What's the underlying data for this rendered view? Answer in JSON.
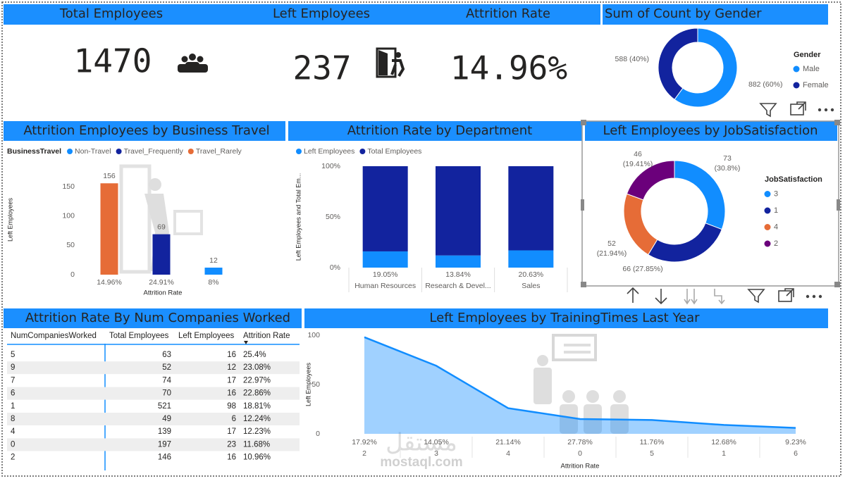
{
  "cards": [
    {
      "title": "Total Employees",
      "value": 1470
    },
    {
      "title": "Left Employees",
      "value": 237
    },
    {
      "title": "Attrition Rate",
      "value": "14.96%"
    }
  ],
  "table": {
    "title": "Attrition Rate By Num Companies Worked",
    "columns": [
      "NumCompaniesWorked",
      "Total Employees",
      "Left Employees",
      "Attrition Rate"
    ],
    "rows": [
      [
        5,
        63,
        16,
        "25.4%"
      ],
      [
        9,
        52,
        12,
        "23.08%"
      ],
      [
        7,
        74,
        17,
        "22.97%"
      ],
      [
        6,
        70,
        16,
        "22.86%"
      ],
      [
        1,
        521,
        98,
        "18.81%"
      ],
      [
        8,
        49,
        6,
        "12.24%"
      ],
      [
        4,
        139,
        17,
        "12.23%"
      ],
      [
        0,
        197,
        23,
        "11.68%"
      ],
      [
        2,
        146,
        16,
        "10.96%"
      ]
    ]
  },
  "watermark": [
    "مستقل",
    "mostaql.com"
  ],
  "chart_data": [
    {
      "type": "donut",
      "title": "Sum of Count by Gender",
      "legend_title": "Gender",
      "categories": [
        "Male",
        "Female"
      ],
      "values": [
        882,
        588
      ],
      "value_labels": [
        "882 (60%)",
        "588 (40%)"
      ],
      "colors": [
        "#118DFF",
        "#12239E"
      ]
    },
    {
      "type": "bar",
      "title": "Attrition Employees by Business Travel",
      "legend_title": "BusinessTravel",
      "x_label": "Attrition Rate",
      "y_label": "Left Employees",
      "categories": [
        "14.96%",
        "24.91%",
        "8%"
      ],
      "series": [
        {
          "name": "Non-Travel",
          "color": "#118DFF",
          "values": [
            null,
            null,
            12
          ]
        },
        {
          "name": "Travel_Frequently",
          "color": "#12239E",
          "values": [
            null,
            69,
            null
          ]
        },
        {
          "name": "Travel_Rarely",
          "color": "#E66C37",
          "values": [
            156,
            null,
            null
          ]
        }
      ],
      "ylim": [
        0,
        190
      ],
      "yticks": [
        0,
        50,
        100,
        150
      ]
    },
    {
      "type": "stacked100",
      "title": "Attrition Rate by Department",
      "y_label": "Left Employees and Total Em...",
      "categories": [
        "Human Resources",
        "Research & Devel...",
        "Sales"
      ],
      "category_rates": [
        "19.05%",
        "13.84%",
        "20.63%"
      ],
      "series": [
        {
          "name": "Left Employees",
          "color": "#118DFF",
          "values": [
            16,
            12,
            17
          ]
        },
        {
          "name": "Total Employees",
          "color": "#12239E",
          "values": [
            84,
            88,
            83
          ]
        }
      ],
      "ylim": [
        0,
        100
      ],
      "yticks": [
        {
          "value": 0,
          "label": "0%"
        },
        {
          "value": 50,
          "label": "50%"
        },
        {
          "value": 100,
          "label": "100%"
        }
      ]
    },
    {
      "type": "donut",
      "title": "Left Employees by JobSatisfaction",
      "legend_title": "JobSatisfaction",
      "categories": [
        "3",
        "1",
        "4",
        "2"
      ],
      "values": [
        73,
        66,
        52,
        46
      ],
      "value_labels": [
        "73 (30.8%)",
        "66 (27.85%)",
        "52 (21.94%)",
        "46 (19.41%)"
      ],
      "colors": [
        "#118DFF",
        "#12239E",
        "#E66C37",
        "#6B007B"
      ]
    },
    {
      "type": "area",
      "title": "Left Employees by TrainingTimes Last Year",
      "x_label": "Attrition Rate",
      "y_label": "Left Employees",
      "categories": [
        "2",
        "3",
        "4",
        "0",
        "5",
        "1",
        "6"
      ],
      "category_rates": [
        "17.92%",
        "14.05%",
        "21.14%",
        "27.78%",
        "11.76%",
        "12.68%",
        "9.23%"
      ],
      "values": [
        98,
        69,
        26,
        15,
        14,
        9,
        6
      ],
      "color": "#118DFF",
      "ylim": [
        0,
        100
      ],
      "yticks": [
        0,
        50,
        100
      ]
    }
  ]
}
